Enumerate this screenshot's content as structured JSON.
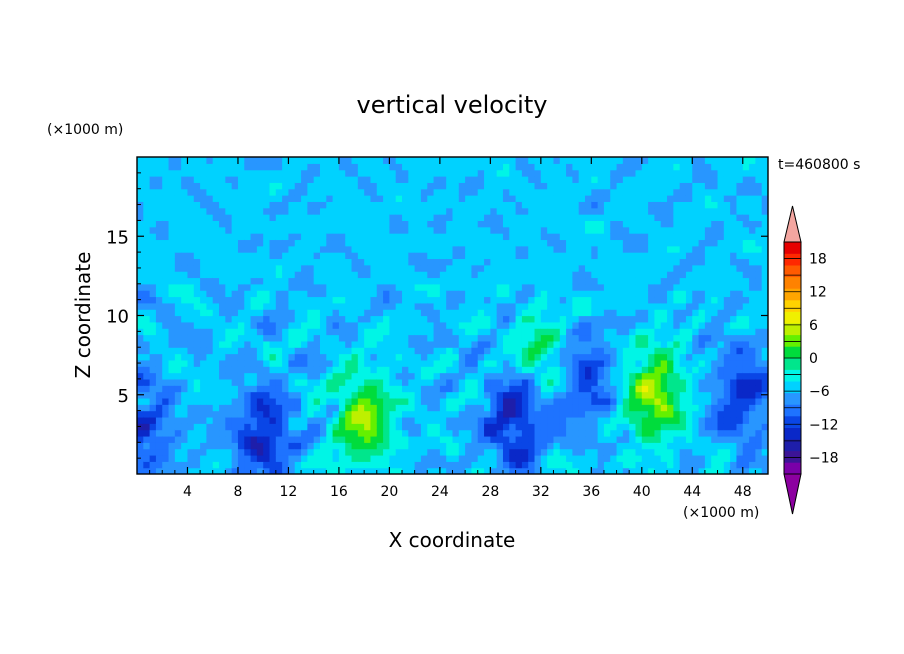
{
  "chart_data": {
    "type": "heatmap",
    "title": "vertical velocity",
    "xlabel": "X coordinate",
    "ylabel": "Z coordinate",
    "x_unit_label": "(×1000 m)",
    "y_unit_label": "(×1000 m)",
    "time_label": "t=460800 s",
    "xlim": [
      0,
      50
    ],
    "ylim": [
      0,
      20
    ],
    "x_ticks": [
      4,
      8,
      12,
      16,
      20,
      24,
      28,
      32,
      36,
      40,
      44,
      48
    ],
    "y_ticks": [
      5,
      10,
      15
    ],
    "colorbar": {
      "min": -21,
      "max": 21,
      "step": 3,
      "tick_values": [
        -18,
        -12,
        -6,
        0,
        6,
        12,
        18
      ],
      "extend": "both",
      "colors": [
        "#7a00a8",
        "#3c1496",
        "#1e1eaa",
        "#0a28c8",
        "#0a46e6",
        "#1e73ff",
        "#2896ff",
        "#00d2ff",
        "#00f5e6",
        "#00e68c",
        "#00dc3c",
        "#64f000",
        "#bef000",
        "#f0f000",
        "#ffd200",
        "#ffa500",
        "#ff8200",
        "#ff5a00",
        "#ff2800",
        "#e60000"
      ],
      "low_extend_color": "#8c00a0",
      "high_extend_color": "#f4a6a0"
    },
    "features": [
      {
        "x": 18,
        "z": 3.5,
        "w": 14
      },
      {
        "x": 41,
        "z": 5,
        "w": 15
      },
      {
        "x": 10,
        "z": 2.5,
        "w": -12
      },
      {
        "x": 30,
        "z": 3.5,
        "w": -13
      },
      {
        "x": 32,
        "z": 7.5,
        "w": 8
      },
      {
        "x": 35.5,
        "z": 6,
        "w": -9
      },
      {
        "x": 48,
        "z": 5,
        "w": -10
      },
      {
        "x": 0.5,
        "z": 3,
        "w": -9
      }
    ]
  }
}
